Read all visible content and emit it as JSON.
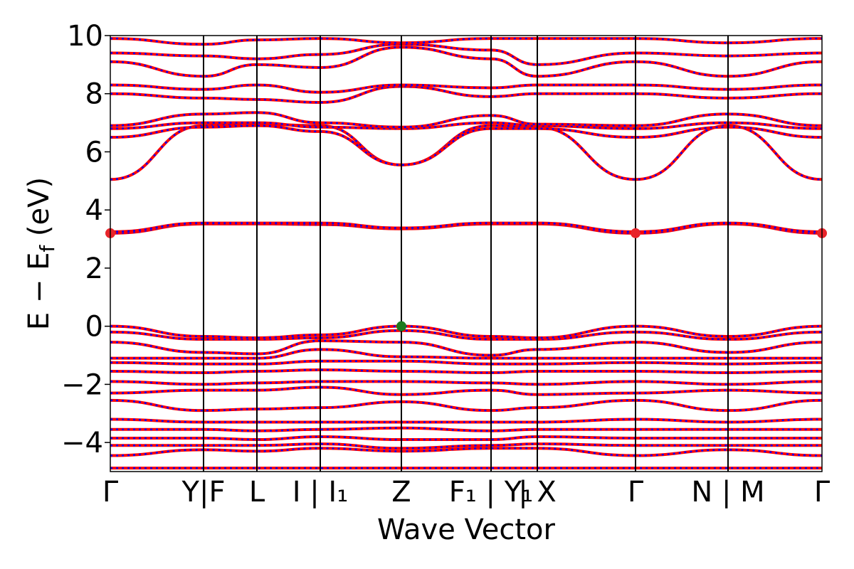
{
  "chart_data": {
    "type": "line",
    "title": "",
    "xlabel": "Wave Vector",
    "ylabel": "E − E",
    "ylabel_sub": "f",
    "ylabel_unit": " (eV)",
    "ylim": [
      -5,
      10
    ],
    "yticks": [
      -4,
      -2,
      0,
      2,
      4,
      6,
      8,
      10
    ],
    "ytick_labels": [
      "−4",
      "−2",
      "0",
      "2",
      "4",
      "6",
      "8",
      "10"
    ],
    "grid": false,
    "legend": "none",
    "kpoints": [
      {
        "x": 0.0,
        "label": "Γ"
      },
      {
        "x": 1.31,
        "label": "Y|F"
      },
      {
        "x": 2.06,
        "label": "L"
      },
      {
        "x": 2.95,
        "label": "I | I₁"
      },
      {
        "x": 4.09,
        "label": "Z"
      },
      {
        "x": 5.35,
        "label": "F₁ | Y₁"
      },
      {
        "x": 6.0,
        "label": "| X"
      },
      {
        "x": 7.38,
        "label": "Γ"
      },
      {
        "x": 8.68,
        "label": "N | M"
      },
      {
        "x": 10.0,
        "label": "Γ"
      }
    ],
    "xlim": [
      0,
      10
    ],
    "series": [
      {
        "values": [
          -4.88,
          -4.88,
          -4.88,
          -4.88,
          -4.88,
          -4.88,
          -4.88,
          -4.88,
          -4.88,
          -4.88
        ]
      },
      {
        "values": [
          -4.45,
          -4.25,
          -4.3,
          -4.2,
          -4.3,
          -4.2,
          -4.2,
          -4.45,
          -4.25,
          -4.45
        ]
      },
      {
        "values": [
          -4.1,
          -4.1,
          -4.1,
          -4.05,
          -4.2,
          -4.1,
          -4.05,
          -4.1,
          -4.1,
          -4.1
        ]
      },
      {
        "values": [
          -3.85,
          -3.85,
          -3.9,
          -3.8,
          -3.9,
          -3.9,
          -3.8,
          -3.85,
          -3.85,
          -3.85
        ]
      },
      {
        "values": [
          -3.55,
          -3.55,
          -3.6,
          -3.55,
          -3.5,
          -3.6,
          -3.55,
          -3.55,
          -3.55,
          -3.55
        ]
      },
      {
        "values": [
          -3.2,
          -3.3,
          -3.3,
          -3.3,
          -3.3,
          -3.3,
          -3.3,
          -3.2,
          -3.3,
          -3.2
        ]
      },
      {
        "values": [
          -2.55,
          -2.9,
          -2.85,
          -2.8,
          -2.6,
          -2.9,
          -2.8,
          -2.55,
          -2.9,
          -2.55
        ]
      },
      {
        "values": [
          -2.3,
          -2.2,
          -2.2,
          -2.1,
          -2.35,
          -2.2,
          -2.35,
          -2.3,
          -2.2,
          -2.3
        ]
      },
      {
        "values": [
          -1.9,
          -2.0,
          -1.95,
          -1.9,
          -1.9,
          -1.95,
          -2.0,
          -1.9,
          -2.0,
          -1.9
        ]
      },
      {
        "values": [
          -1.55,
          -1.6,
          -1.55,
          -1.5,
          -1.55,
          -1.6,
          -1.55,
          -1.55,
          -1.6,
          -1.55
        ]
      },
      {
        "values": [
          -1.25,
          -1.3,
          -1.3,
          -1.2,
          -1.2,
          -1.3,
          -1.3,
          -1.25,
          -1.3,
          -1.25
        ]
      },
      {
        "values": [
          -1.1,
          -1.1,
          -1.1,
          -0.8,
          -1.05,
          -1.1,
          -1.1,
          -1.1,
          -1.1,
          -1.1
        ]
      },
      {
        "values": [
          -0.55,
          -0.9,
          -0.95,
          -0.5,
          -0.55,
          -1.0,
          -0.8,
          -0.55,
          -0.9,
          -0.55
        ]
      },
      {
        "values": [
          -0.2,
          -0.45,
          -0.45,
          -0.4,
          -0.15,
          -0.45,
          -0.45,
          -0.2,
          -0.45,
          -0.2
        ]
      },
      {
        "values": [
          0.0,
          -0.35,
          -0.4,
          -0.3,
          0.0,
          -0.35,
          -0.4,
          0.0,
          -0.35,
          0.0
        ]
      },
      {
        "values": [
          3.2,
          3.52,
          3.52,
          3.5,
          3.35,
          3.52,
          3.52,
          3.2,
          3.52,
          3.2
        ]
      },
      {
        "values": [
          3.25,
          3.55,
          3.55,
          3.55,
          3.38,
          3.55,
          3.55,
          3.25,
          3.55,
          3.25
        ]
      },
      {
        "values": [
          5.05,
          6.9,
          6.95,
          6.9,
          5.55,
          6.9,
          6.85,
          5.05,
          6.9,
          5.05
        ]
      },
      {
        "values": [
          6.5,
          6.85,
          6.9,
          6.7,
          5.55,
          6.8,
          6.8,
          6.5,
          6.85,
          6.5
        ]
      },
      {
        "values": [
          6.8,
          7.0,
          7.0,
          6.85,
          6.8,
          7.0,
          6.9,
          6.8,
          7.0,
          6.8
        ]
      },
      {
        "values": [
          6.9,
          7.3,
          7.35,
          7.0,
          6.85,
          7.25,
          6.95,
          6.9,
          7.3,
          6.9
        ]
      },
      {
        "values": [
          8.0,
          7.85,
          7.8,
          7.7,
          8.25,
          7.9,
          8.0,
          8.0,
          7.85,
          8.0
        ]
      },
      {
        "values": [
          8.3,
          8.15,
          8.3,
          8.05,
          8.3,
          8.2,
          8.3,
          8.3,
          8.15,
          8.3
        ]
      },
      {
        "values": [
          9.1,
          8.6,
          9.0,
          8.9,
          9.6,
          9.2,
          8.6,
          9.1,
          8.6,
          9.1
        ]
      },
      {
        "values": [
          9.4,
          9.3,
          9.2,
          9.35,
          9.7,
          9.5,
          9.0,
          9.4,
          9.3,
          9.4
        ]
      },
      {
        "values": [
          9.9,
          9.7,
          9.85,
          9.9,
          9.75,
          9.9,
          9.9,
          9.9,
          9.75,
          9.9
        ]
      }
    ],
    "cbm_points": [
      {
        "x": 0.0,
        "y": 3.2
      },
      {
        "x": 7.38,
        "y": 3.2
      },
      {
        "x": 10.0,
        "y": 3.2
      }
    ],
    "vbm_points": [
      {
        "x": 4.09,
        "y": 0.0
      }
    ],
    "colors": {
      "band_red": "#ff0000",
      "band_blue": "#0000ff",
      "cbm": "#e8242a",
      "vbm": "#1e7b1e",
      "vline": "#000000"
    }
  }
}
